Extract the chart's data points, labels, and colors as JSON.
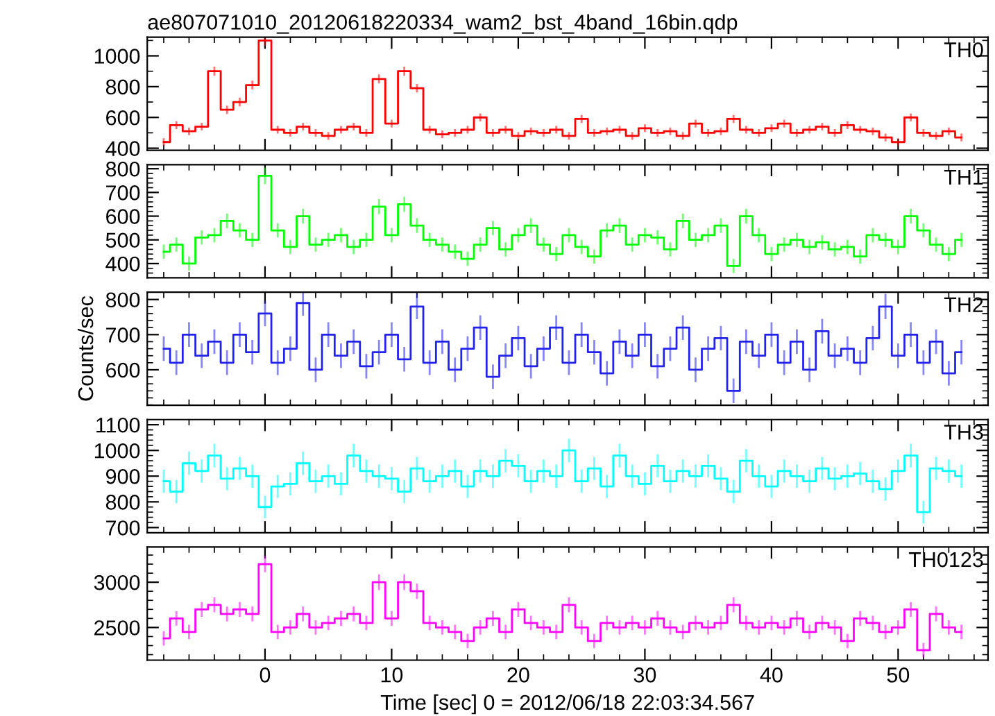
{
  "chart_data": [
    {
      "type": "step",
      "title": "ae807071010_20120618220334_wam2_bst_4band_16bin.qdp",
      "tick_labels": "y",
      "x": [
        -8,
        -7,
        -6,
        -5,
        -4,
        -3,
        -2,
        -1,
        0,
        1,
        2,
        3,
        4,
        5,
        6,
        7,
        8,
        9,
        10,
        11,
        12,
        13,
        14,
        15,
        16,
        17,
        18,
        19,
        20,
        21,
        22,
        23,
        24,
        25,
        26,
        27,
        28,
        29,
        30,
        31,
        32,
        33,
        34,
        35,
        36,
        37,
        38,
        39,
        40,
        41,
        42,
        43,
        44,
        45,
        46,
        47,
        48,
        49,
        50,
        51,
        52,
        53,
        54,
        55
      ],
      "xlim": [
        -9.3,
        57.1
      ],
      "xticks": [
        {
          "value": -8,
          "label": null
        },
        {
          "value": -6,
          "label": null
        },
        {
          "value": -4,
          "label": null
        },
        {
          "value": -2,
          "label": null
        },
        0,
        {
          "value": 2,
          "label": null
        },
        {
          "value": 4,
          "label": null
        },
        {
          "value": 6,
          "label": null
        },
        {
          "value": 8,
          "label": null
        },
        10,
        {
          "value": 12,
          "label": null
        },
        {
          "value": 14,
          "label": null
        },
        {
          "value": 16,
          "label": null
        },
        {
          "value": 18,
          "label": null
        },
        20,
        {
          "value": 22,
          "label": null
        },
        {
          "value": 24,
          "label": null
        },
        {
          "value": 26,
          "label": null
        },
        {
          "value": 28,
          "label": null
        },
        30,
        {
          "value": 32,
          "label": null
        },
        {
          "value": 34,
          "label": null
        },
        {
          "value": 36,
          "label": null
        },
        {
          "value": 38,
          "label": null
        },
        40,
        {
          "value": 42,
          "label": null
        },
        {
          "value": 44,
          "label": null
        },
        {
          "value": 46,
          "label": null
        },
        {
          "value": 48,
          "label": null
        },
        50,
        {
          "value": 52,
          "label": null
        },
        {
          "value": 54,
          "label": null
        },
        {
          "value": 56,
          "label": null
        }
      ],
      "ylim": [
        386,
        1121
      ],
      "yticks": [
        400,
        {
          "value": 500,
          "label": null
        },
        600,
        {
          "value": 700,
          "label": null
        },
        800,
        {
          "value": 900,
          "label": null
        },
        1000,
        {
          "value": 1100,
          "label": null
        }
      ],
      "series": [
        {
          "name": "TH0",
          "color": "#ff0000",
          "values": [
            440,
            550,
            510,
            540,
            900,
            650,
            700,
            810,
            1100,
            520,
            500,
            540,
            500,
            480,
            520,
            540,
            500,
            850,
            560,
            900,
            790,
            520,
            490,
            500,
            520,
            600,
            500,
            520,
            480,
            510,
            500,
            520,
            480,
            590,
            500,
            510,
            520,
            480,
            530,
            500,
            510,
            480,
            560,
            500,
            510,
            590,
            520,
            500,
            530,
            560,
            500,
            520,
            540,
            500,
            550,
            520,
            510,
            470,
            440,
            600,
            500,
            480,
            510,
            470
          ],
          "errors": [
            25,
            25,
            25,
            25,
            30,
            27,
            28,
            29,
            33,
            25,
            25,
            25,
            25,
            25,
            25,
            25,
            25,
            29,
            25,
            30,
            28,
            25,
            25,
            25,
            25,
            26,
            25,
            25,
            25,
            25,
            25,
            25,
            25,
            26,
            25,
            25,
            25,
            25,
            25,
            25,
            25,
            25,
            25,
            25,
            25,
            26,
            25,
            25,
            25,
            25,
            25,
            25,
            25,
            25,
            25,
            25,
            25,
            25,
            25,
            26,
            25,
            25,
            25,
            25
          ]
        }
      ]
    },
    {
      "type": "step",
      "tick_labels": "y",
      "x": [
        -8,
        -7,
        -6,
        -5,
        -4,
        -3,
        -2,
        -1,
        0,
        1,
        2,
        3,
        4,
        5,
        6,
        7,
        8,
        9,
        10,
        11,
        12,
        13,
        14,
        15,
        16,
        17,
        18,
        19,
        20,
        21,
        22,
        23,
        24,
        25,
        26,
        27,
        28,
        29,
        30,
        31,
        32,
        33,
        34,
        35,
        36,
        37,
        38,
        39,
        40,
        41,
        42,
        43,
        44,
        45,
        46,
        47,
        48,
        49,
        50,
        51,
        52,
        53,
        54,
        55
      ],
      "xlim": [
        -9.3,
        57.1
      ],
      "xticks": [
        {
          "value": -8,
          "label": null
        },
        {
          "value": -6,
          "label": null
        },
        {
          "value": -4,
          "label": null
        },
        {
          "value": -2,
          "label": null
        },
        0,
        {
          "value": 2,
          "label": null
        },
        {
          "value": 4,
          "label": null
        },
        {
          "value": 6,
          "label": null
        },
        {
          "value": 8,
          "label": null
        },
        10,
        {
          "value": 12,
          "label": null
        },
        {
          "value": 14,
          "label": null
        },
        {
          "value": 16,
          "label": null
        },
        {
          "value": 18,
          "label": null
        },
        20,
        {
          "value": 22,
          "label": null
        },
        {
          "value": 24,
          "label": null
        },
        {
          "value": 26,
          "label": null
        },
        {
          "value": 28,
          "label": null
        },
        30,
        {
          "value": 32,
          "label": null
        },
        {
          "value": 34,
          "label": null
        },
        {
          "value": 36,
          "label": null
        },
        {
          "value": 38,
          "label": null
        },
        40,
        {
          "value": 42,
          "label": null
        },
        {
          "value": 44,
          "label": null
        },
        {
          "value": 46,
          "label": null
        },
        {
          "value": 48,
          "label": null
        },
        50,
        {
          "value": 52,
          "label": null
        },
        {
          "value": 54,
          "label": null
        },
        {
          "value": 56,
          "label": null
        }
      ],
      "ylim": [
        340,
        817
      ],
      "yticks": [
        {
          "value": 360,
          "label": null
        },
        {
          "value": 380,
          "label": null
        },
        400,
        {
          "value": 420,
          "label": null
        },
        {
          "value": 440,
          "label": null
        },
        {
          "value": 460,
          "label": null
        },
        {
          "value": 480,
          "label": null
        },
        500,
        {
          "value": 520,
          "label": null
        },
        {
          "value": 540,
          "label": null
        },
        {
          "value": 560,
          "label": null
        },
        {
          "value": 580,
          "label": null
        },
        600,
        {
          "value": 620,
          "label": null
        },
        {
          "value": 640,
          "label": null
        },
        {
          "value": 660,
          "label": null
        },
        {
          "value": 680,
          "label": null
        },
        700,
        {
          "value": 720,
          "label": null
        },
        {
          "value": 740,
          "label": null
        },
        {
          "value": 760,
          "label": null
        },
        {
          "value": 780,
          "label": null
        },
        800
      ],
      "series": [
        {
          "name": "TH1",
          "color": "#00ff00",
          "values": [
            450,
            480,
            400,
            510,
            520,
            580,
            540,
            500,
            770,
            540,
            470,
            600,
            480,
            500,
            520,
            470,
            500,
            640,
            520,
            650,
            560,
            500,
            480,
            450,
            420,
            480,
            550,
            460,
            520,
            560,
            480,
            440,
            520,
            470,
            430,
            540,
            560,
            480,
            520,
            510,
            460,
            580,
            500,
            520,
            560,
            390,
            600,
            520,
            440,
            480,
            500,
            470,
            490,
            460,
            470,
            430,
            520,
            500,
            470,
            600,
            540,
            480,
            440,
            500
          ],
          "errors": [
            30,
            30,
            30,
            30,
            30,
            31,
            30,
            30,
            35,
            30,
            30,
            31,
            30,
            30,
            30,
            30,
            30,
            32,
            30,
            32,
            31,
            30,
            30,
            30,
            30,
            30,
            30,
            30,
            30,
            31,
            30,
            30,
            30,
            30,
            30,
            30,
            31,
            30,
            30,
            30,
            30,
            31,
            30,
            30,
            31,
            30,
            31,
            30,
            30,
            30,
            30,
            30,
            30,
            30,
            30,
            30,
            30,
            30,
            30,
            31,
            30,
            30,
            30,
            30
          ]
        }
      ]
    },
    {
      "type": "step",
      "tick_labels": "y",
      "ylabel": "Counts/sec",
      "x": [
        -8,
        -7,
        -6,
        -5,
        -4,
        -3,
        -2,
        -1,
        0,
        1,
        2,
        3,
        4,
        5,
        6,
        7,
        8,
        9,
        10,
        11,
        12,
        13,
        14,
        15,
        16,
        17,
        18,
        19,
        20,
        21,
        22,
        23,
        24,
        25,
        26,
        27,
        28,
        29,
        30,
        31,
        32,
        33,
        34,
        35,
        36,
        37,
        38,
        39,
        40,
        41,
        42,
        43,
        44,
        45,
        46,
        47,
        48,
        49,
        50,
        51,
        52,
        53,
        54,
        55
      ],
      "xlim": [
        -9.3,
        57.1
      ],
      "xticks": [
        {
          "value": -8,
          "label": null
        },
        {
          "value": -6,
          "label": null
        },
        {
          "value": -4,
          "label": null
        },
        {
          "value": -2,
          "label": null
        },
        0,
        {
          "value": 2,
          "label": null
        },
        {
          "value": 4,
          "label": null
        },
        {
          "value": 6,
          "label": null
        },
        {
          "value": 8,
          "label": null
        },
        10,
        {
          "value": 12,
          "label": null
        },
        {
          "value": 14,
          "label": null
        },
        {
          "value": 16,
          "label": null
        },
        {
          "value": 18,
          "label": null
        },
        20,
        {
          "value": 22,
          "label": null
        },
        {
          "value": 24,
          "label": null
        },
        {
          "value": 26,
          "label": null
        },
        {
          "value": 28,
          "label": null
        },
        30,
        {
          "value": 32,
          "label": null
        },
        {
          "value": 34,
          "label": null
        },
        {
          "value": 36,
          "label": null
        },
        {
          "value": 38,
          "label": null
        },
        40,
        {
          "value": 42,
          "label": null
        },
        {
          "value": 44,
          "label": null
        },
        {
          "value": 46,
          "label": null
        },
        {
          "value": 48,
          "label": null
        },
        50,
        {
          "value": 52,
          "label": null
        },
        {
          "value": 54,
          "label": null
        },
        {
          "value": 56,
          "label": null
        }
      ],
      "ylim": [
        499,
        821
      ],
      "yticks": [
        {
          "value": 500,
          "label": null
        },
        {
          "value": 520,
          "label": null
        },
        {
          "value": 540,
          "label": null
        },
        {
          "value": 560,
          "label": null
        },
        {
          "value": 580,
          "label": null
        },
        600,
        {
          "value": 620,
          "label": null
        },
        {
          "value": 640,
          "label": null
        },
        {
          "value": 660,
          "label": null
        },
        {
          "value": 680,
          "label": null
        },
        700,
        {
          "value": 720,
          "label": null
        },
        {
          "value": 740,
          "label": null
        },
        {
          "value": 760,
          "label": null
        },
        {
          "value": 780,
          "label": null
        },
        800
      ],
      "series": [
        {
          "name": "TH2",
          "color": "#2222ee",
          "values": [
            660,
            620,
            700,
            640,
            680,
            620,
            700,
            650,
            760,
            620,
            660,
            790,
            600,
            700,
            640,
            680,
            610,
            650,
            700,
            630,
            780,
            620,
            680,
            600,
            660,
            720,
            580,
            640,
            690,
            610,
            660,
            720,
            620,
            700,
            650,
            590,
            680,
            640,
            700,
            610,
            660,
            720,
            600,
            660,
            690,
            540,
            680,
            640,
            700,
            620,
            680,
            600,
            710,
            640,
            660,
            620,
            690,
            780,
            640,
            700,
            620,
            680,
            590,
            650
          ],
          "errors": [
            35,
            35,
            35,
            35,
            35,
            35,
            35,
            35,
            36,
            35,
            35,
            36,
            35,
            35,
            35,
            35,
            35,
            35,
            35,
            35,
            36,
            35,
            35,
            35,
            35,
            35,
            35,
            35,
            35,
            35,
            35,
            35,
            35,
            35,
            35,
            35,
            35,
            35,
            35,
            35,
            35,
            35,
            35,
            35,
            35,
            35,
            35,
            35,
            35,
            35,
            35,
            35,
            35,
            35,
            35,
            35,
            35,
            36,
            35,
            35,
            35,
            35,
            35,
            35
          ]
        }
      ]
    },
    {
      "type": "step",
      "tick_labels": "y",
      "x": [
        -8,
        -7,
        -6,
        -5,
        -4,
        -3,
        -2,
        -1,
        0,
        1,
        2,
        3,
        4,
        5,
        6,
        7,
        8,
        9,
        10,
        11,
        12,
        13,
        14,
        15,
        16,
        17,
        18,
        19,
        20,
        21,
        22,
        23,
        24,
        25,
        26,
        27,
        28,
        29,
        30,
        31,
        32,
        33,
        34,
        35,
        36,
        37,
        38,
        39,
        40,
        41,
        42,
        43,
        44,
        45,
        46,
        47,
        48,
        49,
        50,
        51,
        52,
        53,
        54,
        55
      ],
      "xlim": [
        -9.3,
        57.1
      ],
      "xticks": [
        {
          "value": -8,
          "label": null
        },
        {
          "value": -6,
          "label": null
        },
        {
          "value": -4,
          "label": null
        },
        {
          "value": -2,
          "label": null
        },
        0,
        {
          "value": 2,
          "label": null
        },
        {
          "value": 4,
          "label": null
        },
        {
          "value": 6,
          "label": null
        },
        {
          "value": 8,
          "label": null
        },
        10,
        {
          "value": 12,
          "label": null
        },
        {
          "value": 14,
          "label": null
        },
        {
          "value": 16,
          "label": null
        },
        {
          "value": 18,
          "label": null
        },
        20,
        {
          "value": 22,
          "label": null
        },
        {
          "value": 24,
          "label": null
        },
        {
          "value": 26,
          "label": null
        },
        {
          "value": 28,
          "label": null
        },
        30,
        {
          "value": 32,
          "label": null
        },
        {
          "value": 34,
          "label": null
        },
        {
          "value": 36,
          "label": null
        },
        {
          "value": 38,
          "label": null
        },
        40,
        {
          "value": 42,
          "label": null
        },
        {
          "value": 44,
          "label": null
        },
        {
          "value": 46,
          "label": null
        },
        {
          "value": 48,
          "label": null
        },
        50,
        {
          "value": 52,
          "label": null
        },
        {
          "value": 54,
          "label": null
        },
        {
          "value": 56,
          "label": null
        }
      ],
      "ylim": [
        680,
        1120
      ],
      "yticks": [
        700,
        {
          "value": 720,
          "label": null
        },
        {
          "value": 740,
          "label": null
        },
        {
          "value": 760,
          "label": null
        },
        {
          "value": 780,
          "label": null
        },
        800,
        {
          "value": 820,
          "label": null
        },
        {
          "value": 840,
          "label": null
        },
        {
          "value": 860,
          "label": null
        },
        {
          "value": 880,
          "label": null
        },
        900,
        {
          "value": 920,
          "label": null
        },
        {
          "value": 940,
          "label": null
        },
        {
          "value": 960,
          "label": null
        },
        {
          "value": 980,
          "label": null
        },
        1000,
        {
          "value": 1020,
          "label": null
        },
        {
          "value": 1040,
          "label": null
        },
        {
          "value": 1060,
          "label": null
        },
        {
          "value": 1080,
          "label": null
        },
        1100
      ],
      "series": [
        {
          "name": "TH3",
          "color": "#00ffff",
          "values": [
            880,
            840,
            950,
            920,
            980,
            890,
            930,
            900,
            780,
            860,
            870,
            950,
            880,
            900,
            870,
            980,
            920,
            900,
            890,
            840,
            930,
            880,
            900,
            920,
            860,
            920,
            900,
            960,
            940,
            880,
            920,
            900,
            1000,
            880,
            930,
            860,
            980,
            900,
            870,
            940,
            880,
            920,
            900,
            940,
            890,
            840,
            960,
            900,
            860,
            920,
            900,
            880,
            930,
            890,
            900,
            910,
            880,
            850,
            920,
            980,
            760,
            930,
            920,
            900
          ],
          "errors": [
            45,
            45,
            45,
            45,
            46,
            45,
            45,
            45,
            44,
            45,
            45,
            45,
            45,
            45,
            45,
            46,
            45,
            45,
            45,
            45,
            45,
            45,
            45,
            45,
            45,
            45,
            45,
            45,
            45,
            45,
            45,
            45,
            46,
            45,
            45,
            45,
            46,
            45,
            45,
            45,
            45,
            45,
            45,
            45,
            45,
            45,
            45,
            45,
            45,
            45,
            45,
            45,
            45,
            45,
            45,
            45,
            45,
            45,
            45,
            46,
            44,
            45,
            45,
            45
          ]
        }
      ]
    },
    {
      "type": "step",
      "xlabel": "Time [sec] 0 = 2012/06/18 22:03:34.567",
      "x": [
        -8,
        -7,
        -6,
        -5,
        -4,
        -3,
        -2,
        -1,
        0,
        1,
        2,
        3,
        4,
        5,
        6,
        7,
        8,
        9,
        10,
        11,
        12,
        13,
        14,
        15,
        16,
        17,
        18,
        19,
        20,
        21,
        22,
        23,
        24,
        25,
        26,
        27,
        28,
        29,
        30,
        31,
        32,
        33,
        34,
        35,
        36,
        37,
        38,
        39,
        40,
        41,
        42,
        43,
        44,
        45,
        46,
        47,
        48,
        49,
        50,
        51,
        52,
        53,
        54,
        55
      ],
      "xlim": [
        -9.3,
        57.1
      ],
      "xticks": [
        {
          "value": -8,
          "label": null
        },
        {
          "value": -6,
          "label": null
        },
        {
          "value": -4,
          "label": null
        },
        {
          "value": -2,
          "label": null
        },
        0,
        {
          "value": 2,
          "label": null
        },
        {
          "value": 4,
          "label": null
        },
        {
          "value": 6,
          "label": null
        },
        {
          "value": 8,
          "label": null
        },
        10,
        {
          "value": 12,
          "label": null
        },
        {
          "value": 14,
          "label": null
        },
        {
          "value": 16,
          "label": null
        },
        {
          "value": 18,
          "label": null
        },
        20,
        {
          "value": 22,
          "label": null
        },
        {
          "value": 24,
          "label": null
        },
        {
          "value": 26,
          "label": null
        },
        {
          "value": 28,
          "label": null
        },
        30,
        {
          "value": 32,
          "label": null
        },
        {
          "value": 34,
          "label": null
        },
        {
          "value": 36,
          "label": null
        },
        {
          "value": 38,
          "label": null
        },
        40,
        {
          "value": 42,
          "label": null
        },
        {
          "value": 44,
          "label": null
        },
        {
          "value": 46,
          "label": null
        },
        {
          "value": 48,
          "label": null
        },
        50,
        {
          "value": 52,
          "label": null
        },
        {
          "value": 54,
          "label": null
        },
        {
          "value": 56,
          "label": null
        }
      ],
      "ylim": [
        2139,
        3389
      ],
      "yticks": [
        {
          "value": 2200,
          "label": null
        },
        {
          "value": 2300,
          "label": null
        },
        {
          "value": 2400,
          "label": null
        },
        2500,
        {
          "value": 2600,
          "label": null
        },
        {
          "value": 2700,
          "label": null
        },
        {
          "value": 2800,
          "label": null
        },
        {
          "value": 2900,
          "label": null
        },
        3000,
        {
          "value": 3100,
          "label": null
        },
        {
          "value": 3200,
          "label": null
        },
        {
          "value": 3300,
          "label": null
        }
      ],
      "series": [
        {
          "name": "TH0123",
          "color": "#ff00ff",
          "values": [
            2380,
            2600,
            2450,
            2700,
            2750,
            2650,
            2700,
            2650,
            3200,
            2450,
            2500,
            2650,
            2500,
            2550,
            2600,
            2650,
            2550,
            3000,
            2600,
            3000,
            2900,
            2550,
            2500,
            2450,
            2350,
            2500,
            2600,
            2450,
            2700,
            2550,
            2500,
            2450,
            2750,
            2500,
            2350,
            2550,
            2500,
            2550,
            2500,
            2600,
            2500,
            2450,
            2550,
            2500,
            2550,
            2750,
            2550,
            2500,
            2550,
            2500,
            2600,
            2450,
            2550,
            2500,
            2350,
            2600,
            2550,
            2450,
            2500,
            2700,
            2250,
            2650,
            2500,
            2450
          ],
          "errors": [
            80,
            80,
            80,
            82,
            82,
            81,
            82,
            81,
            90,
            80,
            80,
            81,
            80,
            80,
            81,
            81,
            80,
            86,
            81,
            86,
            85,
            80,
            80,
            80,
            79,
            80,
            81,
            80,
            82,
            80,
            80,
            80,
            82,
            80,
            79,
            80,
            80,
            80,
            80,
            81,
            80,
            80,
            80,
            80,
            80,
            82,
            80,
            80,
            80,
            80,
            81,
            80,
            80,
            80,
            79,
            81,
            80,
            80,
            80,
            82,
            78,
            81,
            80,
            80
          ]
        }
      ]
    }
  ]
}
